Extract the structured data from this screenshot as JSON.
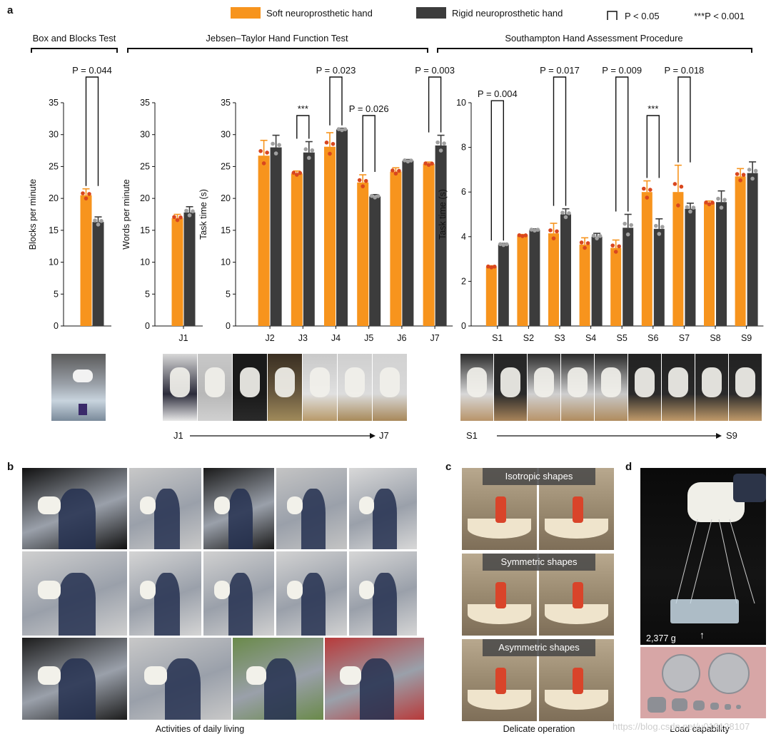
{
  "panel_labels": {
    "a": "a",
    "b": "b",
    "c": "c",
    "d": "d"
  },
  "legend": {
    "soft": "Soft neuroprosthetic hand",
    "rigid": "Rigid neuroprosthetic hand",
    "bracket_sig": "P < 0.05",
    "star_sig": "***P < 0.001"
  },
  "colors": {
    "soft": "#f7941d",
    "rigid": "#3c3c3c",
    "soft_dot": "#d9471e",
    "rigid_dot": "#a0a0a0"
  },
  "group_titles": {
    "bbt": "Box and Blocks Test",
    "jt": "Jebsen–Taylor Hand Function Test",
    "shap": "Southampton Hand Assessment Procedure"
  },
  "chart_data": [
    {
      "type": "bar",
      "ylabel": "Blocks per minute",
      "ylim": [
        0,
        35
      ],
      "yticks": [
        0,
        5,
        10,
        15,
        20,
        25,
        30,
        35
      ],
      "categories": [
        ""
      ],
      "series": [
        {
          "name": "Soft neuroprosthetic hand",
          "values": [
            20.5
          ],
          "err": [
            1.0
          ]
        },
        {
          "name": "Rigid neuroprosthetic hand",
          "values": [
            16.3
          ],
          "err": [
            0.8
          ]
        }
      ],
      "annotations": [
        {
          "category": 0,
          "text": "P = 0.044"
        }
      ]
    },
    {
      "type": "bar",
      "ylabel": "Words per minute",
      "ylim": [
        0,
        35
      ],
      "yticks": [
        0,
        5,
        10,
        15,
        20,
        25,
        30,
        35
      ],
      "categories": [
        "J1"
      ],
      "series": [
        {
          "name": "Soft neuroprosthetic hand",
          "values": [
            16.9
          ],
          "err": [
            0.6
          ]
        },
        {
          "name": "Rigid neuroprosthetic hand",
          "values": [
            17.8
          ],
          "err": [
            0.9
          ]
        }
      ],
      "annotations": []
    },
    {
      "type": "bar",
      "ylabel": "Task time (s)",
      "ylim": [
        0,
        35
      ],
      "yticks": [
        0,
        5,
        10,
        15,
        20,
        25,
        30,
        35
      ],
      "categories": [
        "J2",
        "J3",
        "J4",
        "J5",
        "J6",
        "J7"
      ],
      "series": [
        {
          "name": "Soft neuroprosthetic hand",
          "values": [
            26.7,
            23.9,
            28.1,
            22.5,
            24.2,
            25.4
          ],
          "err": [
            2.4,
            0.4,
            2.2,
            1.2,
            0.6,
            0.3
          ]
        },
        {
          "name": "Rigid neuroprosthetic hand",
          "values": [
            28.0,
            27.2,
            30.8,
            20.3,
            25.9,
            28.3
          ],
          "err": [
            1.9,
            1.7,
            0.2,
            0.3,
            0.2,
            1.6
          ]
        }
      ],
      "annotations": [
        {
          "category": 1,
          "text": "***"
        },
        {
          "category": 2,
          "text": "P = 0.023"
        },
        {
          "category": 3,
          "text": "P = 0.026"
        },
        {
          "category": 5,
          "text": "P = 0.003"
        }
      ]
    },
    {
      "type": "bar",
      "ylabel": "Task time (s)",
      "ylim": [
        0,
        10
      ],
      "yticks": [
        0,
        2,
        4,
        6,
        8,
        10
      ],
      "categories": [
        "S1",
        "S2",
        "S3",
        "S4",
        "S5",
        "S6",
        "S7",
        "S8",
        "S9"
      ],
      "series": [
        {
          "name": "Soft neuroprosthetic hand",
          "values": [
            2.65,
            4.05,
            4.15,
            3.65,
            3.5,
            6.0,
            6.0,
            5.5,
            6.7
          ],
          "err": [
            0.05,
            0.05,
            0.45,
            0.3,
            0.35,
            0.5,
            1.2,
            0.1,
            0.35
          ]
        },
        {
          "name": "Rigid neuroprosthetic hand",
          "values": [
            3.65,
            4.3,
            5.0,
            4.0,
            4.4,
            4.35,
            5.25,
            5.55,
            6.85
          ],
          "err": [
            0.05,
            0.05,
            0.25,
            0.15,
            0.6,
            0.45,
            0.25,
            0.5,
            0.5
          ]
        }
      ],
      "annotations": [
        {
          "category": 0,
          "text": "P = 0.004"
        },
        {
          "category": 2,
          "text": "P = 0.017"
        },
        {
          "category": 4,
          "text": "P = 0.009"
        },
        {
          "category": 5,
          "text": "***"
        },
        {
          "category": 6,
          "text": "P = 0.018"
        }
      ]
    }
  ],
  "sequence": {
    "j_start": "J1",
    "j_end": "J7",
    "s_start": "S1",
    "s_end": "S9"
  },
  "captions": {
    "b": "Activities of daily living",
    "c": "Delicate operation",
    "d": "Load capability"
  },
  "ribbons": [
    "Isotropic shapes",
    "Symmetric shapes",
    "Asymmetric shapes"
  ],
  "load": "2,377 g",
  "watermark": "https://blog.csdn.net/u010128107"
}
